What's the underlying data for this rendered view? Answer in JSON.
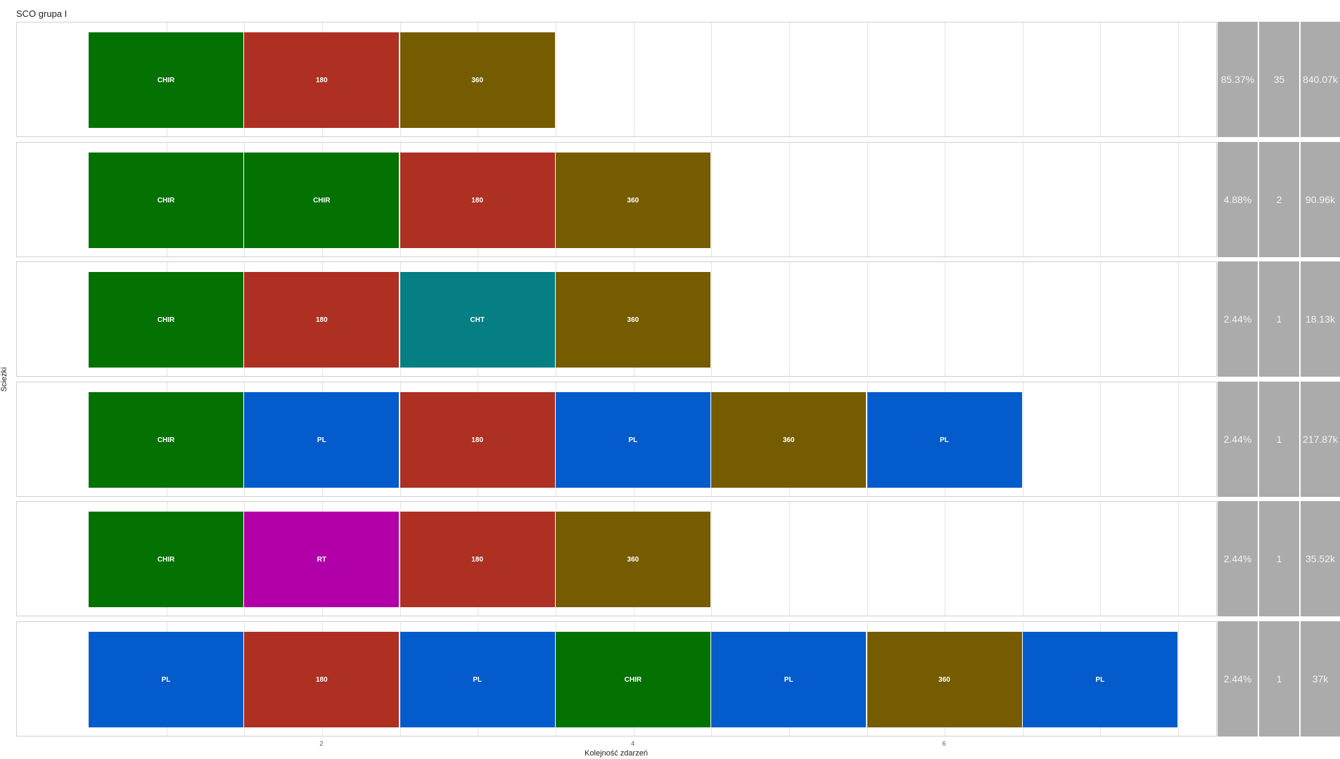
{
  "chart_data": {
    "type": "bar",
    "title": "SCO grupa I",
    "xlabel": "Kolejność zdarzeń",
    "ylabel": "Ścieżki",
    "xlim": [
      0.35,
      8.05
    ],
    "x_ticks": [
      2,
      4,
      6
    ],
    "grid": true,
    "colors": {
      "CHIR": "#037203",
      "180": "#ad3022",
      "360": "#765c00",
      "PL": "#045ccc",
      "CHT": "#057f84",
      "RT": "#b200a8"
    },
    "paths": [
      {
        "events": [
          "CHIR",
          "180",
          "360"
        ],
        "percent": "85.37%",
        "count": "35",
        "value": "840.07k"
      },
      {
        "events": [
          "CHIR",
          "CHIR",
          "180",
          "360"
        ],
        "percent": "4.88%",
        "count": "2",
        "value": "90.96k"
      },
      {
        "events": [
          "CHIR",
          "180",
          "CHT",
          "360"
        ],
        "percent": "2.44%",
        "count": "1",
        "value": "18.13k"
      },
      {
        "events": [
          "CHIR",
          "PL",
          "180",
          "PL",
          "360",
          "PL"
        ],
        "percent": "2.44%",
        "count": "1",
        "value": "217.87k"
      },
      {
        "events": [
          "CHIR",
          "RT",
          "180",
          "360"
        ],
        "percent": "2.44%",
        "count": "1",
        "value": "35.52k"
      },
      {
        "events": [
          "PL",
          "180",
          "PL",
          "CHIR",
          "PL",
          "360",
          "PL"
        ],
        "percent": "2.44%",
        "count": "1",
        "value": "37k"
      }
    ]
  }
}
